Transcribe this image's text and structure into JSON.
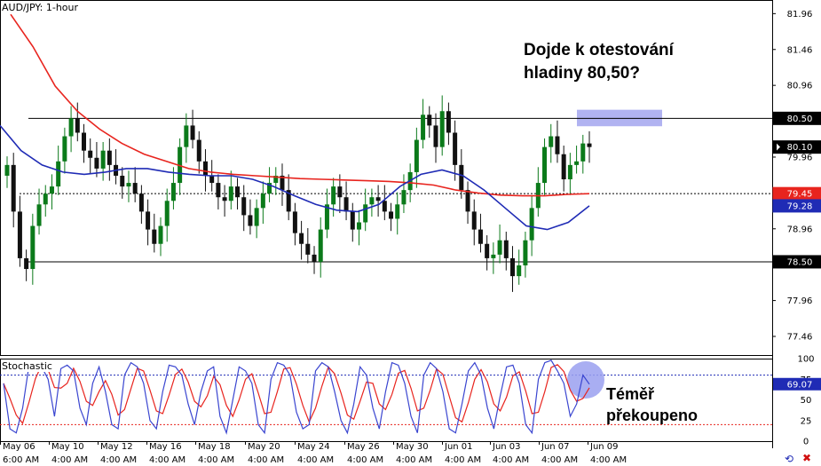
{
  "chart_data": {
    "type": "candlestick",
    "title": "AUD/JPY: 1-hour",
    "price_axis": {
      "ylim": [
        77.2,
        82.15
      ],
      "ticks": [
        "81.96",
        "81.46",
        "80.96",
        "80.50",
        "79.96",
        "78.96",
        "78.50",
        "77.96",
        "77.46"
      ]
    },
    "price_tags": {
      "current": {
        "label": "80.10",
        "value": 80.1,
        "color": "#000000"
      },
      "red_ma": {
        "label": "79.45",
        "value": 79.45,
        "color": "#e8241e"
      },
      "blue_ma": {
        "label": "79.28",
        "value": 79.28,
        "color": "#1f2bb5"
      },
      "level_top": {
        "label": "80.50",
        "value": 80.5
      },
      "level_bottom": {
        "label": "78.50",
        "value": 78.5
      },
      "stoch": {
        "label": "69.07",
        "value": 69.07,
        "color": "#1f2bb5"
      }
    },
    "levels": [
      {
        "value": 80.5,
        "style": "solid"
      },
      {
        "value": 79.45,
        "style": "dashed"
      },
      {
        "value": 78.5,
        "style": "solid"
      }
    ],
    "target_zone": {
      "low": 80.39,
      "high": 80.62
    },
    "candles_closes": [
      79.85,
      79.2,
      78.55,
      78.4,
      79.0,
      79.3,
      79.45,
      79.55,
      79.9,
      80.25,
      80.5,
      80.3,
      80.05,
      79.95,
      79.8,
      80.05,
      79.85,
      79.7,
      79.55,
      79.6,
      79.45,
      79.2,
      78.95,
      78.75,
      79.0,
      79.35,
      79.6,
      80.1,
      80.4,
      80.2,
      79.9,
      79.7,
      79.6,
      79.4,
      79.35,
      79.55,
      79.4,
      79.15,
      79.0,
      79.25,
      79.45,
      79.6,
      79.7,
      79.5,
      79.2,
      78.9,
      78.75,
      78.6,
      78.5,
      78.95,
      79.3,
      79.55,
      79.4,
      79.2,
      78.95,
      79.05,
      79.3,
      79.4,
      79.35,
      79.2,
      79.1,
      79.3,
      79.5,
      79.75,
      80.2,
      80.55,
      80.4,
      80.1,
      80.6,
      80.3,
      79.85,
      79.5,
      79.2,
      78.95,
      78.75,
      78.55,
      78.6,
      78.8,
      78.55,
      78.3,
      78.45,
      78.8,
      79.25,
      79.6,
      80.1,
      80.25,
      80.0,
      79.65,
      79.85,
      79.9,
      80.15,
      80.1
    ],
    "ma_red": [
      81.95,
      81.5,
      80.95,
      80.6,
      80.35,
      80.15,
      80.0,
      79.9,
      79.8,
      79.75,
      79.72,
      79.7,
      79.68,
      79.66,
      79.65,
      79.64,
      79.63,
      79.62,
      79.6,
      79.57,
      79.5,
      79.46,
      79.43,
      79.42,
      79.42,
      79.44,
      79.45
    ],
    "ma_blue": [
      80.4,
      80.05,
      79.85,
      79.75,
      79.72,
      79.75,
      79.8,
      79.8,
      79.75,
      79.72,
      79.7,
      79.7,
      79.65,
      79.55,
      79.42,
      79.3,
      79.22,
      79.2,
      79.3,
      79.55,
      79.72,
      79.78,
      79.7,
      79.5,
      79.25,
      79.0,
      78.95,
      79.05,
      79.28
    ],
    "stochastic": {
      "label": "Stochastic",
      "ylim": [
        0,
        100
      ],
      "ticks": [
        "100",
        "75",
        "50",
        "25",
        "0"
      ],
      "upper_level": 80,
      "lower_level": 20,
      "k_values": [
        70,
        15,
        10,
        40,
        92,
        95,
        90,
        75,
        30,
        88,
        92,
        85,
        40,
        20,
        70,
        90,
        60,
        20,
        15,
        80,
        95,
        90,
        70,
        25,
        15,
        60,
        92,
        90,
        80,
        45,
        20,
        60,
        85,
        90,
        30,
        10,
        50,
        90,
        85,
        70,
        20,
        10,
        75,
        95,
        92,
        80,
        35,
        15,
        20,
        85,
        95,
        90,
        60,
        25,
        10,
        45,
        90,
        80,
        40,
        15,
        60,
        95,
        92,
        70,
        30,
        10,
        80,
        95,
        88,
        60,
        15,
        10,
        45,
        85,
        95,
        80,
        40,
        15,
        55,
        90,
        92,
        70,
        20,
        10,
        75,
        95,
        98,
        85,
        70,
        30,
        45,
        80,
        69
      ]
    },
    "x_tick_dates": [
      "May 06",
      "May 10",
      "May 12",
      "May 16",
      "May 18",
      "May 20",
      "May 24",
      "May 26",
      "May 30",
      "Jun 01",
      "Jun 03",
      "Jun 07",
      "Jun 09"
    ],
    "x_tick_times": [
      "6:00 AM",
      "4:00 AM",
      "4:00 AM",
      "4:00 AM",
      "4:00 AM",
      "4:00 AM",
      "4:00 AM",
      "4:00 AM",
      "4:00 AM",
      "4:00 AM",
      "4:00 AM",
      "4:00 AM",
      "4:00 AM"
    ],
    "colors": {
      "bull": "#0b7a1a",
      "bear": "#111111",
      "target": "#a9abf0"
    }
  },
  "annotations": {
    "question_line1": "Dojde k otestování",
    "question_line2": "hladiny 80,50?",
    "stoch_line1": "Téměř",
    "stoch_line2": "překoupeno"
  }
}
